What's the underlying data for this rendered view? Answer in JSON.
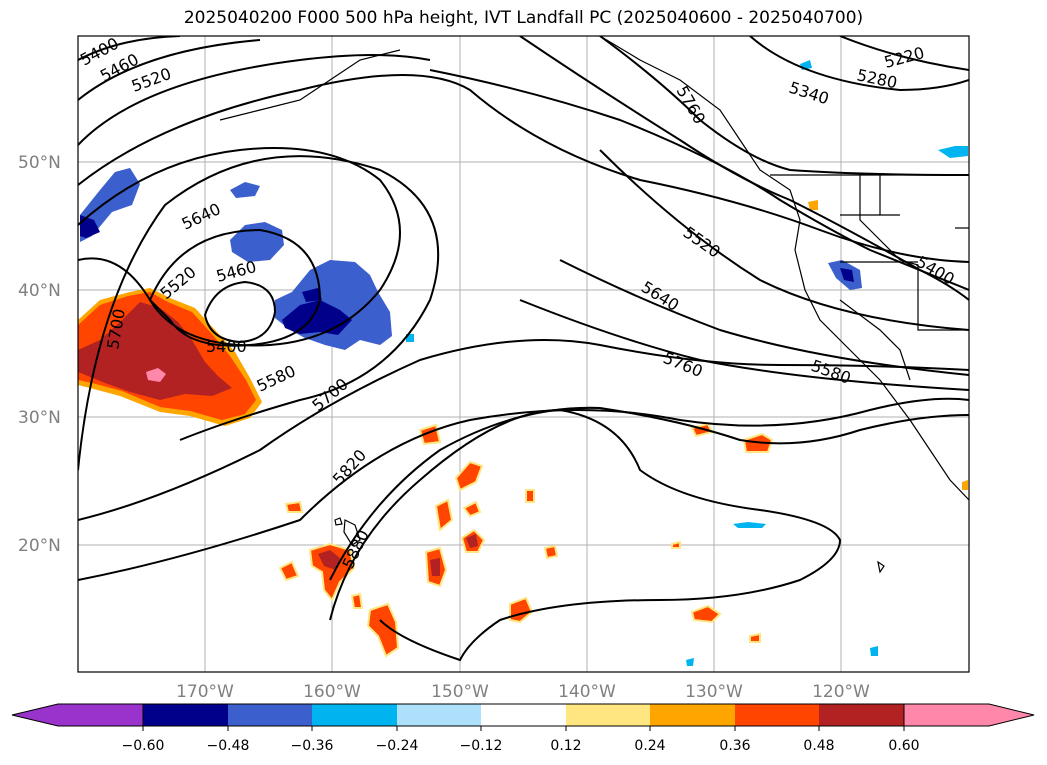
{
  "title": "2025040200 F000 500 hPa height, IVT Landfall PC (2025040600 - 2025040700)",
  "latitude_labels": [
    "50°N",
    "40°N",
    "30°N",
    "20°N"
  ],
  "longitude_labels": [
    "170°W",
    "160°W",
    "150°W",
    "140°W",
    "130°W",
    "120°W"
  ],
  "contour_labels": [
    "5400",
    "5460",
    "5520",
    "5220",
    "5280",
    "5340",
    "5640",
    "5520",
    "5460",
    "5700",
    "5400",
    "5580",
    "5700",
    "5820",
    "5880",
    "5520",
    "5640",
    "5760",
    "5580",
    "5400",
    "5760"
  ],
  "colorbar": {
    "tick_labels": [
      "−0.60",
      "−0.48",
      "−0.36",
      "−0.24",
      "−0.12",
      "0.12",
      "0.24",
      "0.36",
      "0.48",
      "0.60"
    ],
    "colors": [
      "#9933cc",
      "#00008b",
      "#3b5fcc",
      "#00b4f0",
      "#aee0fb",
      "#ffffff",
      "#ffe680",
      "#ffa500",
      "#ff4500",
      "#b22222",
      "#ff88aa"
    ]
  },
  "colors": {
    "negative_strong": "#00008b",
    "negative_mid": "#3b5fcc",
    "negative_light": "#00b4f0",
    "positive_light": "#ffe680",
    "positive_mid": "#ff4500",
    "positive_strong": "#b22222",
    "positive_max": "#ff88aa"
  }
}
